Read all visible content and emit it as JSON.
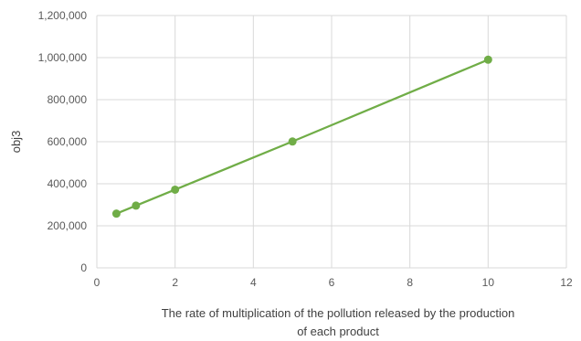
{
  "chart_data": {
    "type": "line",
    "title": "",
    "xlabel_lines": [
      "The rate of multiplication of the pollution released by the production",
      "of each product"
    ],
    "ylabel": "obj3",
    "xlim": [
      0,
      12
    ],
    "ylim": [
      0,
      1200000
    ],
    "x_ticks": [
      0,
      2,
      4,
      6,
      8,
      10,
      12
    ],
    "y_ticks": [
      0,
      200000,
      400000,
      600000,
      800000,
      1000000,
      1200000
    ],
    "x_tick_labels": [
      "0",
      "2",
      "4",
      "6",
      "8",
      "10",
      "12"
    ],
    "y_tick_labels": [
      "0",
      "200,000",
      "400,000",
      "600,000",
      "800,000",
      "1,000,000",
      "1,200,000"
    ],
    "grid": true,
    "series": [
      {
        "color": "#70ad47",
        "x": [
          0.5,
          1,
          2,
          5,
          10
        ],
        "y": [
          258000,
          296000,
          372000,
          601000,
          990000
        ]
      }
    ]
  }
}
